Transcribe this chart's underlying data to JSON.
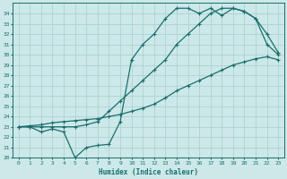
{
  "bg_color": "#cce8e8",
  "line_color": "#1a6e6e",
  "grid_color": "#aacece",
  "xlabel": "Humidex (Indice chaleur)",
  "xlim": [
    -0.5,
    23.5
  ],
  "ylim": [
    20,
    35
  ],
  "xticks": [
    0,
    1,
    2,
    3,
    4,
    5,
    6,
    7,
    8,
    9,
    10,
    11,
    12,
    13,
    14,
    15,
    16,
    17,
    18,
    19,
    20,
    21,
    22,
    23
  ],
  "yticks": [
    20,
    21,
    22,
    23,
    24,
    25,
    26,
    27,
    28,
    29,
    30,
    31,
    32,
    33,
    34
  ],
  "line1_x": [
    0,
    1,
    2,
    3,
    4,
    5,
    6,
    7,
    8,
    9,
    10,
    11,
    12,
    13,
    14,
    15,
    16,
    17,
    18,
    19,
    20,
    21,
    22,
    23
  ],
  "line1_y": [
    23.0,
    23.1,
    23.2,
    23.4,
    23.5,
    23.6,
    23.7,
    23.8,
    24.0,
    24.2,
    24.5,
    24.8,
    25.2,
    25.8,
    26.5,
    27.0,
    27.5,
    28.0,
    28.5,
    29.0,
    29.3,
    29.6,
    29.8,
    29.5
  ],
  "line2_x": [
    0,
    1,
    2,
    3,
    4,
    5,
    6,
    7,
    8,
    9,
    10,
    11,
    12,
    13,
    14,
    15,
    16,
    17,
    18,
    19,
    20,
    21,
    22,
    23
  ],
  "line2_y": [
    23.0,
    23.0,
    22.5,
    22.8,
    22.5,
    20.0,
    21.0,
    21.2,
    21.3,
    23.5,
    29.5,
    31.0,
    32.0,
    33.5,
    34.5,
    34.5,
    34.0,
    34.5,
    33.8,
    34.5,
    34.2,
    33.5,
    31.0,
    30.0
  ],
  "line3_x": [
    0,
    1,
    2,
    3,
    4,
    5,
    6,
    7,
    8,
    9,
    10,
    11,
    12,
    13,
    14,
    15,
    16,
    17,
    18,
    19,
    20,
    21,
    22,
    23
  ],
  "line3_y": [
    23.0,
    23.0,
    23.0,
    23.0,
    23.0,
    23.0,
    23.2,
    23.5,
    24.5,
    25.5,
    26.5,
    27.5,
    28.5,
    29.5,
    31.0,
    32.0,
    33.0,
    34.0,
    34.5,
    34.5,
    34.2,
    33.5,
    32.0,
    30.2
  ],
  "marker": "+",
  "markersize": 3,
  "linewidth": 0.9
}
